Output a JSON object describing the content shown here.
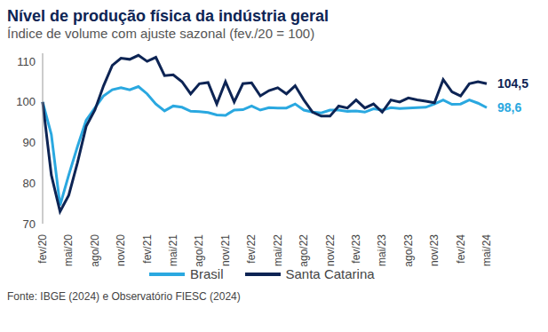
{
  "chart_data": {
    "type": "line",
    "title": "Nível de produção física da indústria geral",
    "subtitle": "Índice de volume com ajuste sazonal (fev./20 = 100)",
    "source": "Fonte: IBGE (2024) e Observatório FIESC (2024)",
    "categories": [
      "fev/20",
      null,
      null,
      "mai/20",
      null,
      null,
      "ago/20",
      null,
      null,
      "nov/20",
      null,
      null,
      "fev/21",
      null,
      null,
      "mai/21",
      null,
      null,
      "ago/21",
      null,
      null,
      "nov/21",
      null,
      null,
      "fev/22",
      null,
      null,
      "mai/22",
      null,
      null,
      "ago/22",
      null,
      null,
      "nov/22",
      null,
      null,
      "fev/23",
      null,
      null,
      "mai/23",
      null,
      null,
      "ago/23",
      null,
      null,
      "nov/23",
      null,
      null,
      "fev/24",
      null,
      null,
      "mai/24"
    ],
    "series": [
      {
        "name": "Brasil",
        "color": "#2aa8e0",
        "values": [
          100,
          92,
          74.5,
          82,
          89,
          95.5,
          98.5,
          101.5,
          103,
          103.5,
          103,
          103.8,
          102,
          99.5,
          97.8,
          99,
          98.7,
          97.7,
          97.6,
          97.4,
          96.8,
          96.7,
          98,
          98.1,
          99,
          98,
          98.6,
          98.5,
          98.5,
          99.5,
          98,
          97.5,
          97.3,
          98,
          98,
          97.7,
          97.8,
          97.5,
          98.3,
          98,
          98.6,
          98.4,
          98.5,
          98.6,
          98.7,
          99.5,
          100.5,
          99.4,
          99.5,
          100.5,
          99.7,
          98.6
        ],
        "value_labels": [
          null,
          null,
          null,
          null,
          null,
          null,
          null,
          null,
          null,
          null,
          null,
          null,
          null,
          null,
          null,
          null,
          null,
          null,
          null,
          null,
          null,
          null,
          null,
          null,
          null,
          null,
          null,
          null,
          null,
          null,
          null,
          null,
          null,
          null,
          null,
          null,
          null,
          null,
          null,
          null,
          null,
          null,
          null,
          null,
          null,
          null,
          null,
          null,
          null,
          null,
          null,
          "98,6"
        ]
      },
      {
        "name": "Santa Catarina",
        "color": "#0d2454",
        "values": [
          100,
          82,
          73,
          77,
          85,
          94,
          98,
          104,
          109,
          110.8,
          110.5,
          111.5,
          110,
          111,
          106.5,
          106.7,
          105,
          102,
          104.5,
          104.8,
          99.5,
          105,
          100,
          104.5,
          104.7,
          101.5,
          102.8,
          103.5,
          102,
          104,
          100.5,
          97.5,
          96.5,
          96.5,
          99,
          98.5,
          100.5,
          98.5,
          99.5,
          97.5,
          100.5,
          100,
          101,
          100.5,
          100.2,
          99.8,
          105.5,
          102.5,
          101.5,
          104.5,
          105,
          104.5
        ],
        "value_labels": [
          null,
          null,
          null,
          null,
          null,
          null,
          null,
          null,
          null,
          null,
          null,
          null,
          null,
          null,
          null,
          null,
          null,
          null,
          null,
          null,
          null,
          null,
          null,
          null,
          null,
          null,
          null,
          null,
          null,
          null,
          null,
          null,
          null,
          null,
          null,
          null,
          null,
          null,
          null,
          null,
          null,
          null,
          null,
          null,
          null,
          null,
          null,
          null,
          null,
          null,
          null,
          "104,5"
        ]
      }
    ],
    "ylim": [
      70,
      112
    ],
    "yticks": [
      70,
      80,
      90,
      100,
      110
    ],
    "grid": false,
    "legend": "bottom"
  }
}
